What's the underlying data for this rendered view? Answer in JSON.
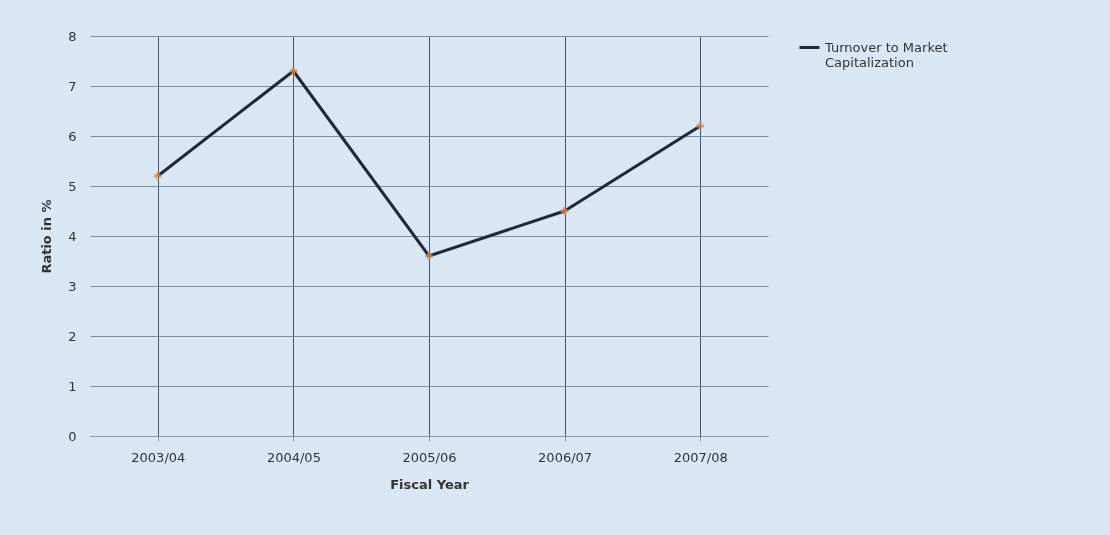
{
  "chart_data": {
    "type": "line",
    "xlabel": "Fiscal Year",
    "ylabel": "Ratio in %",
    "categories": [
      "2003/04",
      "2004/05",
      "2005/06",
      "2006/07",
      "2007/08"
    ],
    "series": [
      {
        "name": "Turnover to Market Capitalization",
        "color": "#1f2937",
        "values": [
          5.2,
          7.3,
          3.6,
          4.5,
          6.2
        ]
      }
    ],
    "ylim": [
      0,
      8
    ],
    "yticks": [
      0,
      1,
      2,
      3,
      4,
      5,
      6,
      7,
      8
    ],
    "grid": true,
    "legend": "right",
    "marker": "cross"
  }
}
